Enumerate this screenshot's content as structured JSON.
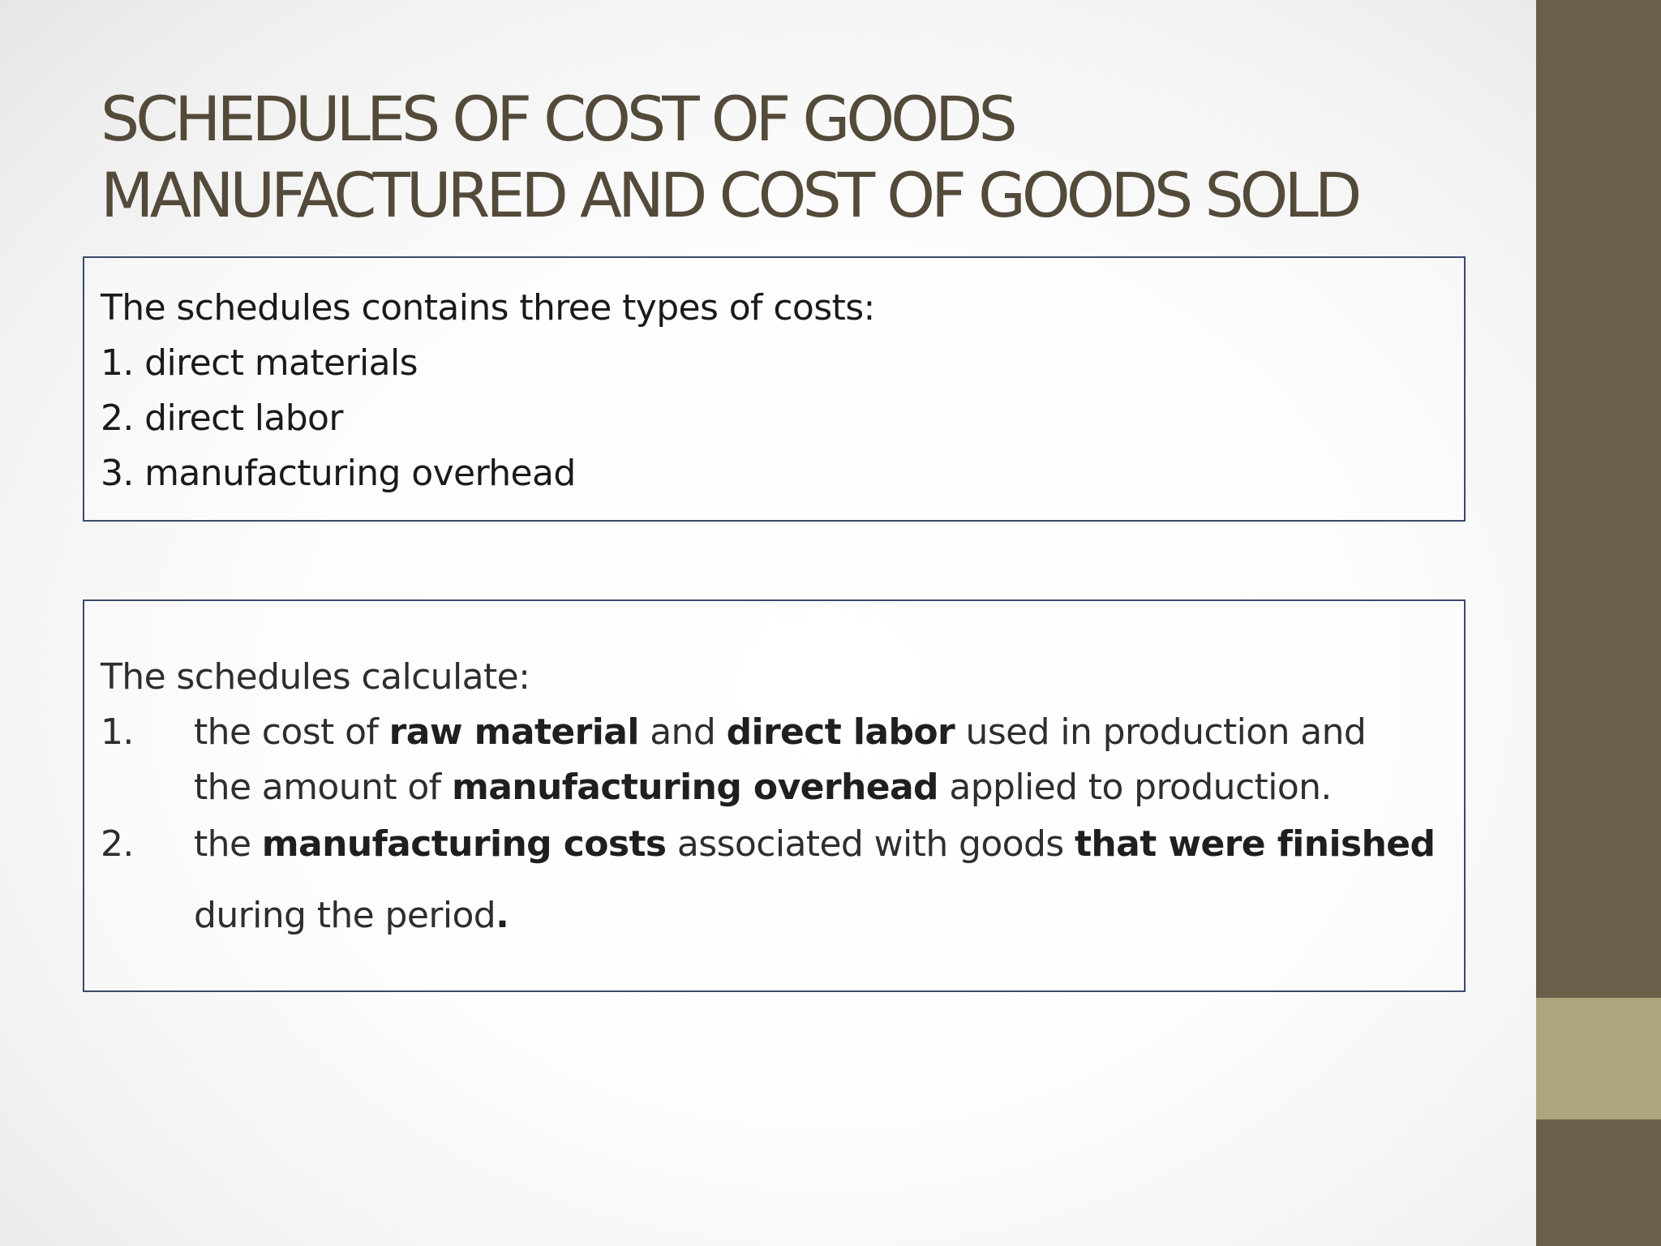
{
  "slide": {
    "title_line1": "SCHEDULES OF COST OF GOODS",
    "title_line2": "MANUFACTURED AND COST OF GOODS SOLD"
  },
  "box1": {
    "intro": "The schedules contains three types of costs:",
    "items": [
      "1. direct materials",
      "2. direct labor",
      "3. manufacturing overhead"
    ]
  },
  "box2": {
    "intro": "The schedules calculate:",
    "item1": {
      "number": "1.",
      "line1": {
        "a": "the cost of ",
        "b": "raw material",
        "c": " and ",
        "d": "direct labor",
        "e": " used in production and"
      },
      "line2": {
        "a": "the amount of ",
        "b": "manufacturing overhead",
        "c": " applied to production."
      }
    },
    "item2": {
      "number": "2.",
      "line1": {
        "a": "the ",
        "b": "manufacturing costs",
        "c": " associated with goods ",
        "d": "that were finished"
      },
      "line2": {
        "a": "during the period",
        "b": "."
      }
    }
  },
  "colors": {
    "sidebar": "#6a5f48",
    "sidebar_accent": "#aca57d",
    "title": "#544a3a",
    "box_border": "#3b4a6b"
  }
}
